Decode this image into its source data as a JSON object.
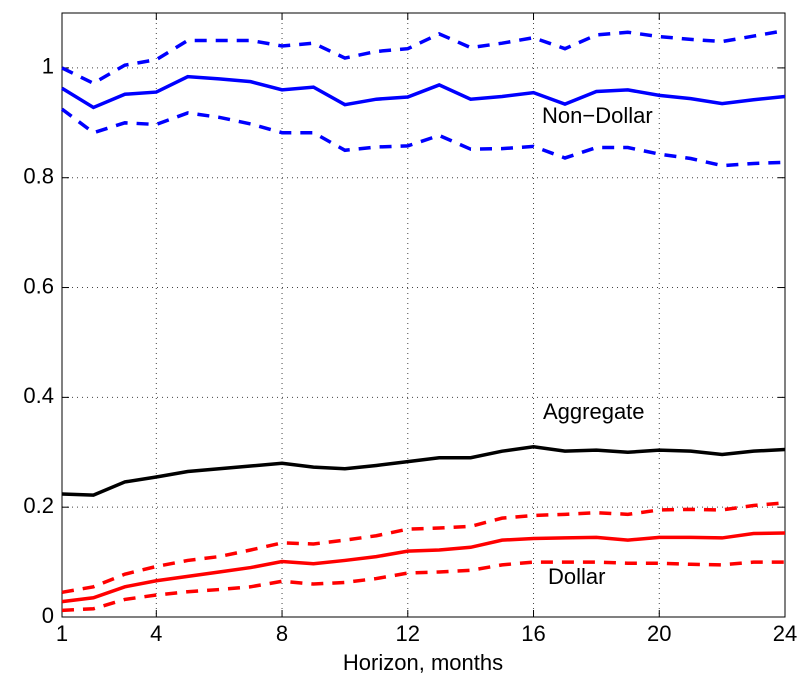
{
  "chart_data": {
    "type": "line",
    "x": [
      1,
      2,
      3,
      4,
      5,
      6,
      7,
      8,
      9,
      10,
      11,
      12,
      13,
      14,
      15,
      16,
      17,
      18,
      19,
      20,
      21,
      22,
      23,
      24
    ],
    "series": [
      {
        "name": "Non−Dollar",
        "color": "#0000ff",
        "dashed": false,
        "values": [
          0.963,
          0.928,
          0.952,
          0.956,
          0.984,
          0.98,
          0.975,
          0.96,
          0.965,
          0.933,
          0.943,
          0.947,
          0.969,
          0.943,
          0.948,
          0.955,
          0.934,
          0.957,
          0.96,
          0.95,
          0.944,
          0.935,
          0.942,
          0.948
        ]
      },
      {
        "color": "#0000ff",
        "dashed": true,
        "values": [
          1.0,
          0.972,
          1.005,
          1.015,
          1.05,
          1.05,
          1.05,
          1.04,
          1.045,
          1.018,
          1.03,
          1.035,
          1.062,
          1.037,
          1.045,
          1.055,
          1.035,
          1.06,
          1.065,
          1.057,
          1.052,
          1.048,
          1.058,
          1.068
        ]
      },
      {
        "color": "#0000ff",
        "dashed": true,
        "values": [
          0.925,
          0.882,
          0.9,
          0.897,
          0.918,
          0.91,
          0.898,
          0.882,
          0.882,
          0.85,
          0.856,
          0.858,
          0.877,
          0.852,
          0.853,
          0.857,
          0.836,
          0.855,
          0.855,
          0.843,
          0.835,
          0.822,
          0.826,
          0.828
        ]
      },
      {
        "name": "Aggregate",
        "color": "#000000",
        "dashed": false,
        "values": [
          0.224,
          0.222,
          0.246,
          0.255,
          0.265,
          0.27,
          0.275,
          0.28,
          0.273,
          0.27,
          0.276,
          0.283,
          0.29,
          0.29,
          0.302,
          0.31,
          0.302,
          0.304,
          0.3,
          0.304,
          0.302,
          0.296,
          0.302,
          0.305
        ]
      },
      {
        "name": "Dollar",
        "color": "#ff0000",
        "dashed": false,
        "values": [
          0.028,
          0.035,
          0.055,
          0.066,
          0.074,
          0.082,
          0.09,
          0.101,
          0.097,
          0.103,
          0.11,
          0.12,
          0.122,
          0.127,
          0.14,
          0.143,
          0.144,
          0.145,
          0.14,
          0.145,
          0.145,
          0.144,
          0.152,
          0.153
        ]
      },
      {
        "color": "#ff0000",
        "dashed": true,
        "values": [
          0.045,
          0.055,
          0.078,
          0.092,
          0.103,
          0.11,
          0.122,
          0.135,
          0.133,
          0.14,
          0.148,
          0.16,
          0.162,
          0.165,
          0.18,
          0.185,
          0.187,
          0.19,
          0.187,
          0.195,
          0.196,
          0.195,
          0.203,
          0.208
        ]
      },
      {
        "color": "#ff0000",
        "dashed": true,
        "values": [
          0.012,
          0.015,
          0.032,
          0.04,
          0.046,
          0.05,
          0.055,
          0.065,
          0.06,
          0.063,
          0.07,
          0.08,
          0.082,
          0.085,
          0.095,
          0.1,
          0.1,
          0.1,
          0.098,
          0.098,
          0.096,
          0.095,
          0.1,
          0.1
        ]
      }
    ],
    "xlabel": "Horizon, months",
    "xlim": [
      1,
      24
    ],
    "xticks": [
      1,
      4,
      8,
      12,
      16,
      20,
      24
    ],
    "ylim": [
      0,
      1.1
    ],
    "yticks": [
      0,
      0.2,
      0.4,
      0.6,
      0.8,
      1
    ],
    "grid": true
  }
}
